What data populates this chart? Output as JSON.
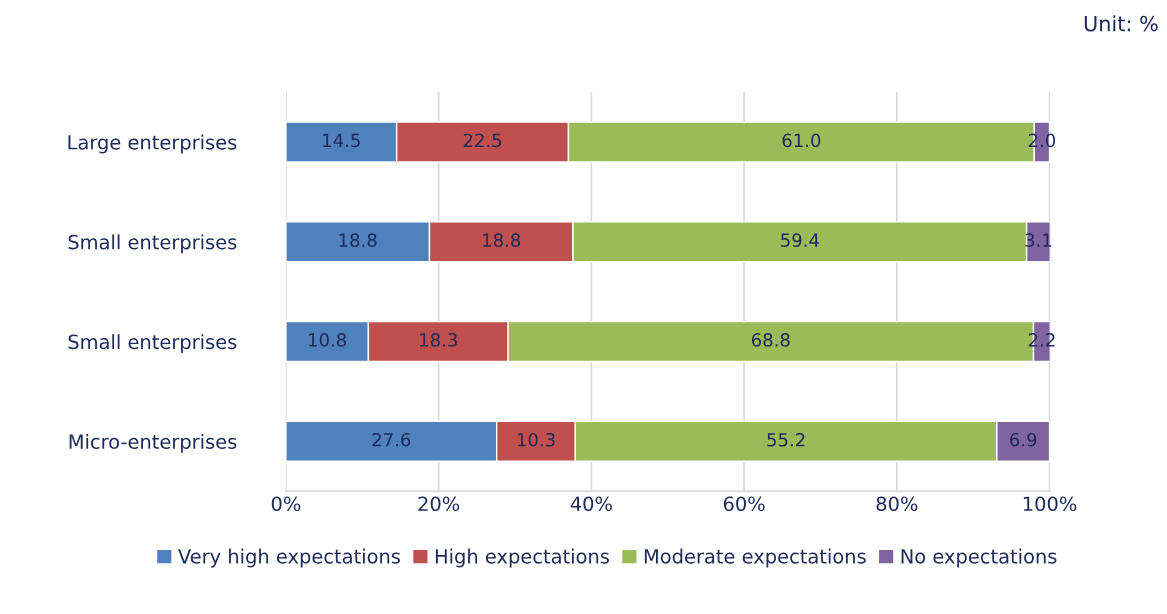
{
  "chart_data": {
    "type": "bar",
    "orientation": "horizontal",
    "stacked": true,
    "categories": [
      "Large enterprises",
      "Small enterprises",
      "Small enterprises",
      "Micro-enterprises"
    ],
    "series": [
      {
        "name": "Very high expectations",
        "color": "#4f81bd",
        "values": [
          14.5,
          18.8,
          10.8,
          27.6
        ],
        "value_labels": [
          "14.5",
          "18.8",
          "10.8",
          "27.6"
        ]
      },
      {
        "name": "High expectations",
        "color": "#c0504d",
        "values": [
          22.5,
          18.8,
          18.3,
          10.3
        ],
        "value_labels": [
          "22.5",
          "18.8",
          "18.3",
          "10.3"
        ]
      },
      {
        "name": "Moderate expectations",
        "color": "#9bbb59",
        "values": [
          61.0,
          59.4,
          68.8,
          55.2
        ],
        "value_labels": [
          "61.0",
          "59.4",
          "68.8",
          "55.2"
        ]
      },
      {
        "name": "No expectations",
        "color": "#8064a2",
        "values": [
          2.0,
          3.1,
          2.2,
          6.9
        ],
        "value_labels": [
          "2.0",
          "3.1",
          "2.2",
          "6.9"
        ]
      }
    ],
    "xlim": [
      0,
      100.1
    ],
    "xticks": [
      {
        "value": 0,
        "label": "0%"
      },
      {
        "value": 20,
        "label": "20%"
      },
      {
        "value": 40,
        "label": "40%"
      },
      {
        "value": 60,
        "label": "60%"
      },
      {
        "value": 80,
        "label": "80%"
      },
      {
        "value": 100,
        "label": "100%"
      }
    ],
    "grid": "x",
    "legend": "bottom",
    "annotations": [
      "Unit: %"
    ]
  }
}
